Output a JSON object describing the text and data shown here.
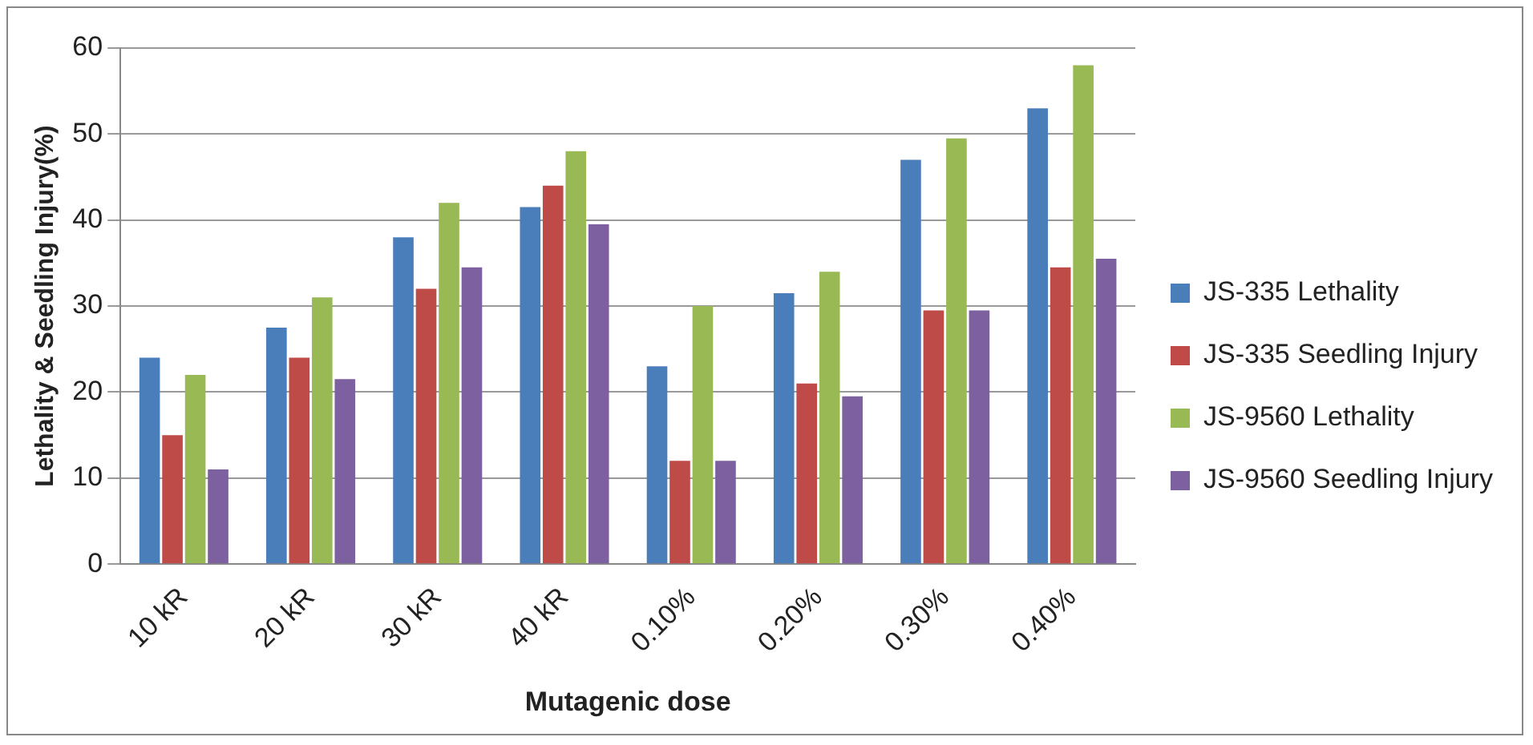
{
  "chart_data": {
    "type": "bar",
    "xlabel": "Mutagenic dose",
    "ylabel": "Lethality & Seedling Injury(%)",
    "categories": [
      "10 kR",
      "20 kR",
      "30 kR",
      "40 kR",
      "0.10%",
      "0.20%",
      "0.30%",
      "0.40%"
    ],
    "series": [
      {
        "name": "JS-335 Lethality",
        "color": "#4a7ebb",
        "values": [
          24,
          27.5,
          38,
          41.5,
          23,
          31.5,
          47,
          53
        ]
      },
      {
        "name": "JS-335 Seedling Injury",
        "color": "#be4b48",
        "values": [
          15,
          24,
          32,
          44,
          12,
          21,
          29.5,
          34.5
        ]
      },
      {
        "name": "JS-9560 Lethality",
        "color": "#98b954",
        "values": [
          22,
          31,
          42,
          48,
          30,
          34,
          49.5,
          58
        ]
      },
      {
        "name": "JS-9560 Seedling Injury",
        "color": "#7d60a0",
        "values": [
          11,
          21.5,
          34.5,
          39.5,
          12,
          19.5,
          29.5,
          35.5
        ]
      }
    ],
    "ylim": [
      0,
      60
    ],
    "yticks": [
      0,
      10,
      20,
      30,
      40,
      50,
      60
    ],
    "grid": "y",
    "legend": "right"
  }
}
